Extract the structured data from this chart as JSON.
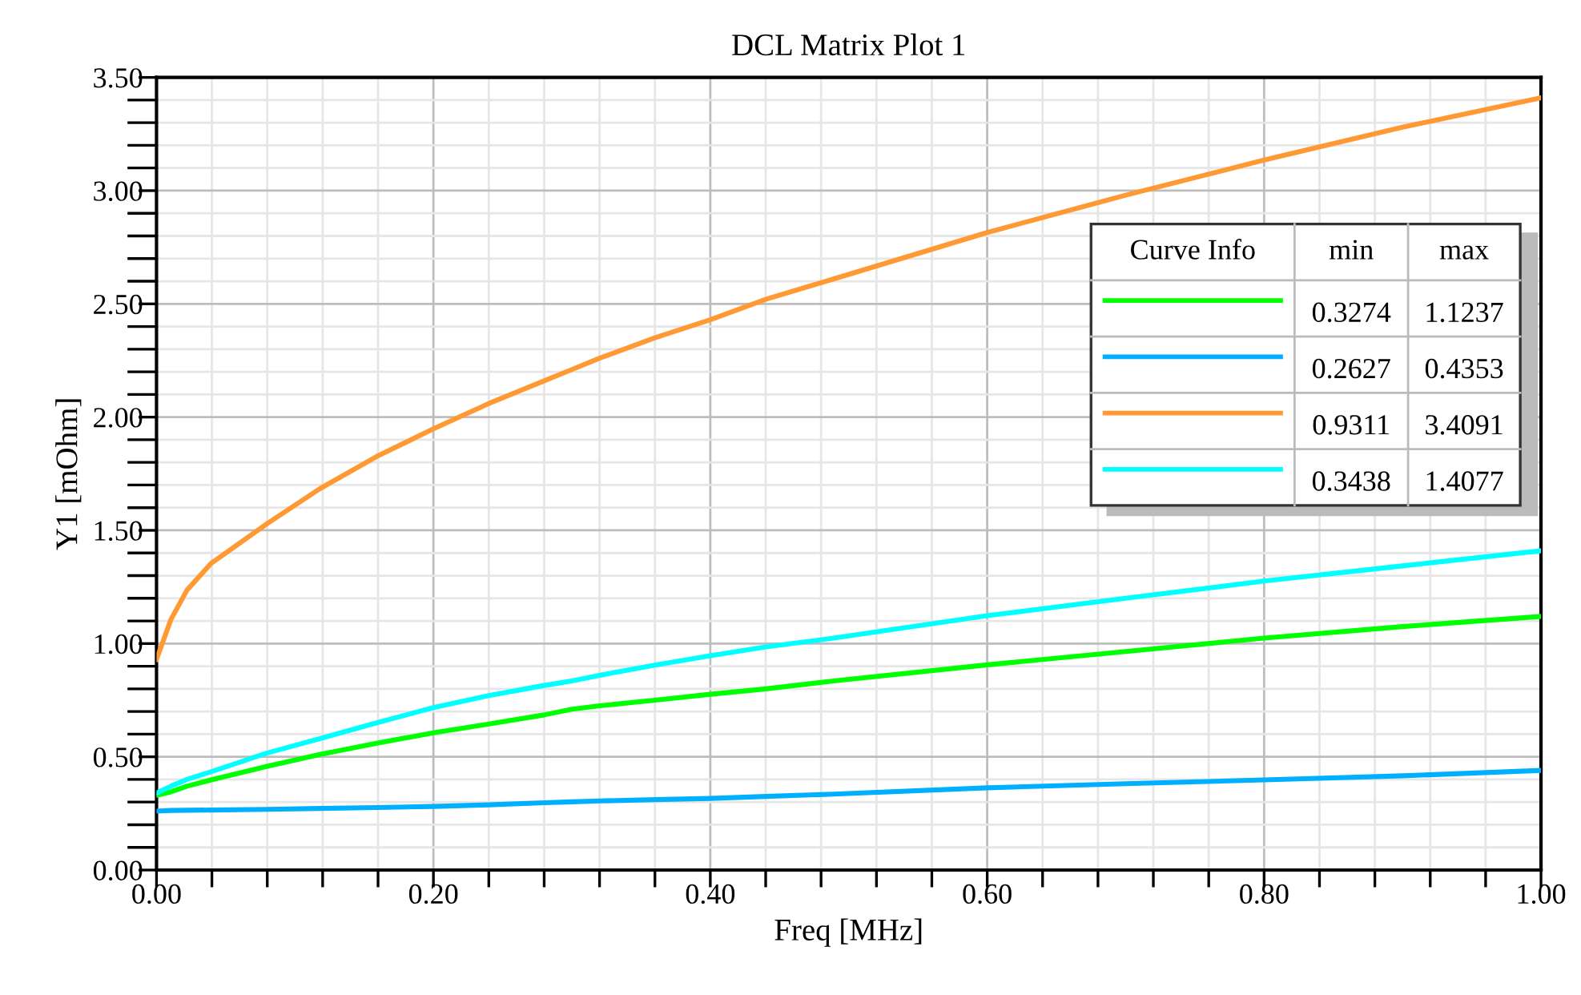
{
  "chart_data": {
    "type": "line",
    "title": "DCL Matrix Plot 1",
    "xlabel": "Freq [MHz]",
    "ylabel": "Y1 [mOhm]",
    "legend_title": "Curve Info",
    "annotations": [
      "min",
      "max",
      "0.3274",
      "1.1237",
      "0.2627",
      "0.4353",
      "0.9311",
      "3.4091",
      "0.3438",
      "1.4077"
    ],
    "x": [
      0,
      0.0104,
      0.022,
      0.0394,
      0.08,
      0.118,
      0.159,
      0.2,
      0.24,
      0.28,
      0.3,
      0.32,
      0.36,
      0.4,
      0.44,
      0.489,
      0.6,
      0.7,
      0.8,
      0.9,
      1.0
    ],
    "series": [
      {
        "color": "#00ff00",
        "values": [
          0.33,
          0.345,
          0.37,
          0.398,
          0.458,
          0.51,
          0.56,
          0.606,
          0.645,
          0.685,
          0.71,
          0.725,
          0.75,
          0.776,
          0.8,
          0.835,
          0.906,
          0.965,
          1.024,
          1.075,
          1.12
        ]
      },
      {
        "color": "#00b0ff",
        "values": [
          0.26,
          0.263,
          0.264,
          0.265,
          0.268,
          0.272,
          0.276,
          0.281,
          0.288,
          0.297,
          0.301,
          0.305,
          0.311,
          0.316,
          0.325,
          0.335,
          0.363,
          0.381,
          0.398,
          0.416,
          0.44
        ]
      },
      {
        "color": "#ff9933",
        "values": [
          0.93,
          1.106,
          1.236,
          1.354,
          1.53,
          1.684,
          1.826,
          1.948,
          2.06,
          2.16,
          2.21,
          2.26,
          2.35,
          2.43,
          2.52,
          2.61,
          2.815,
          2.98,
          3.135,
          3.28,
          3.41
        ]
      },
      {
        "color": "#00ffff",
        "values": [
          0.34,
          0.37,
          0.4,
          0.434,
          0.517,
          0.58,
          0.65,
          0.717,
          0.77,
          0.815,
          0.835,
          0.86,
          0.905,
          0.946,
          0.985,
          1.024,
          1.123,
          1.2,
          1.276,
          1.343,
          1.41
        ]
      }
    ],
    "xlim": [
      0,
      1.0
    ],
    "ylim": [
      0,
      3.5
    ],
    "xticks": [
      {
        "value": 0,
        "label": "0.00"
      },
      {
        "value": 0.04,
        "label": null
      },
      {
        "value": 0.08,
        "label": null
      },
      {
        "value": 0.12,
        "label": null
      },
      {
        "value": 0.16,
        "label": null
      },
      {
        "value": 0.2,
        "label": "0.20"
      },
      {
        "value": 0.24,
        "label": null
      },
      {
        "value": 0.28,
        "label": null
      },
      {
        "value": 0.32,
        "label": null
      },
      {
        "value": 0.36,
        "label": null
      },
      {
        "value": 0.4,
        "label": "0.40"
      },
      {
        "value": 0.44,
        "label": null
      },
      {
        "value": 0.48,
        "label": null
      },
      {
        "value": 0.52,
        "label": null
      },
      {
        "value": 0.56,
        "label": null
      },
      {
        "value": 0.6,
        "label": "0.60"
      },
      {
        "value": 0.64,
        "label": null
      },
      {
        "value": 0.68,
        "label": null
      },
      {
        "value": 0.72,
        "label": null
      },
      {
        "value": 0.76,
        "label": null
      },
      {
        "value": 0.8,
        "label": "0.80"
      },
      {
        "value": 0.84,
        "label": null
      },
      {
        "value": 0.88,
        "label": null
      },
      {
        "value": 0.92,
        "label": null
      },
      {
        "value": 0.96,
        "label": null
      },
      {
        "value": 1.0,
        "label": "1.00"
      }
    ],
    "yticks": [
      {
        "value": 0,
        "label": "0.00"
      },
      {
        "value": 0.1,
        "label": null
      },
      {
        "value": 0.2,
        "label": null
      },
      {
        "value": 0.3,
        "label": null
      },
      {
        "value": 0.4,
        "label": null
      },
      {
        "value": 0.5,
        "label": "0.50"
      },
      {
        "value": 0.6,
        "label": null
      },
      {
        "value": 0.7,
        "label": null
      },
      {
        "value": 0.8,
        "label": null
      },
      {
        "value": 0.9,
        "label": null
      },
      {
        "value": 1.0,
        "label": "1.00"
      },
      {
        "value": 1.1,
        "label": null
      },
      {
        "value": 1.2,
        "label": null
      },
      {
        "value": 1.3,
        "label": null
      },
      {
        "value": 1.4,
        "label": null
      },
      {
        "value": 1.5,
        "label": "1.50"
      },
      {
        "value": 1.6,
        "label": null
      },
      {
        "value": 1.7,
        "label": null
      },
      {
        "value": 1.8,
        "label": null
      },
      {
        "value": 1.9,
        "label": null
      },
      {
        "value": 2.0,
        "label": "2.00"
      },
      {
        "value": 2.1,
        "label": null
      },
      {
        "value": 2.2,
        "label": null
      },
      {
        "value": 2.3,
        "label": null
      },
      {
        "value": 2.4,
        "label": null
      },
      {
        "value": 2.5,
        "label": "2.50"
      },
      {
        "value": 2.6,
        "label": null
      },
      {
        "value": 2.7,
        "label": null
      },
      {
        "value": 2.8,
        "label": null
      },
      {
        "value": 2.9,
        "label": null
      },
      {
        "value": 3.0,
        "label": "3.00"
      },
      {
        "value": 3.1,
        "label": null
      },
      {
        "value": 3.2,
        "label": null
      },
      {
        "value": 3.3,
        "label": null
      },
      {
        "value": 3.4,
        "label": null
      },
      {
        "value": 3.5,
        "label": "3.50"
      }
    ],
    "grid": true,
    "marker": "none",
    "line_style": "solid"
  }
}
